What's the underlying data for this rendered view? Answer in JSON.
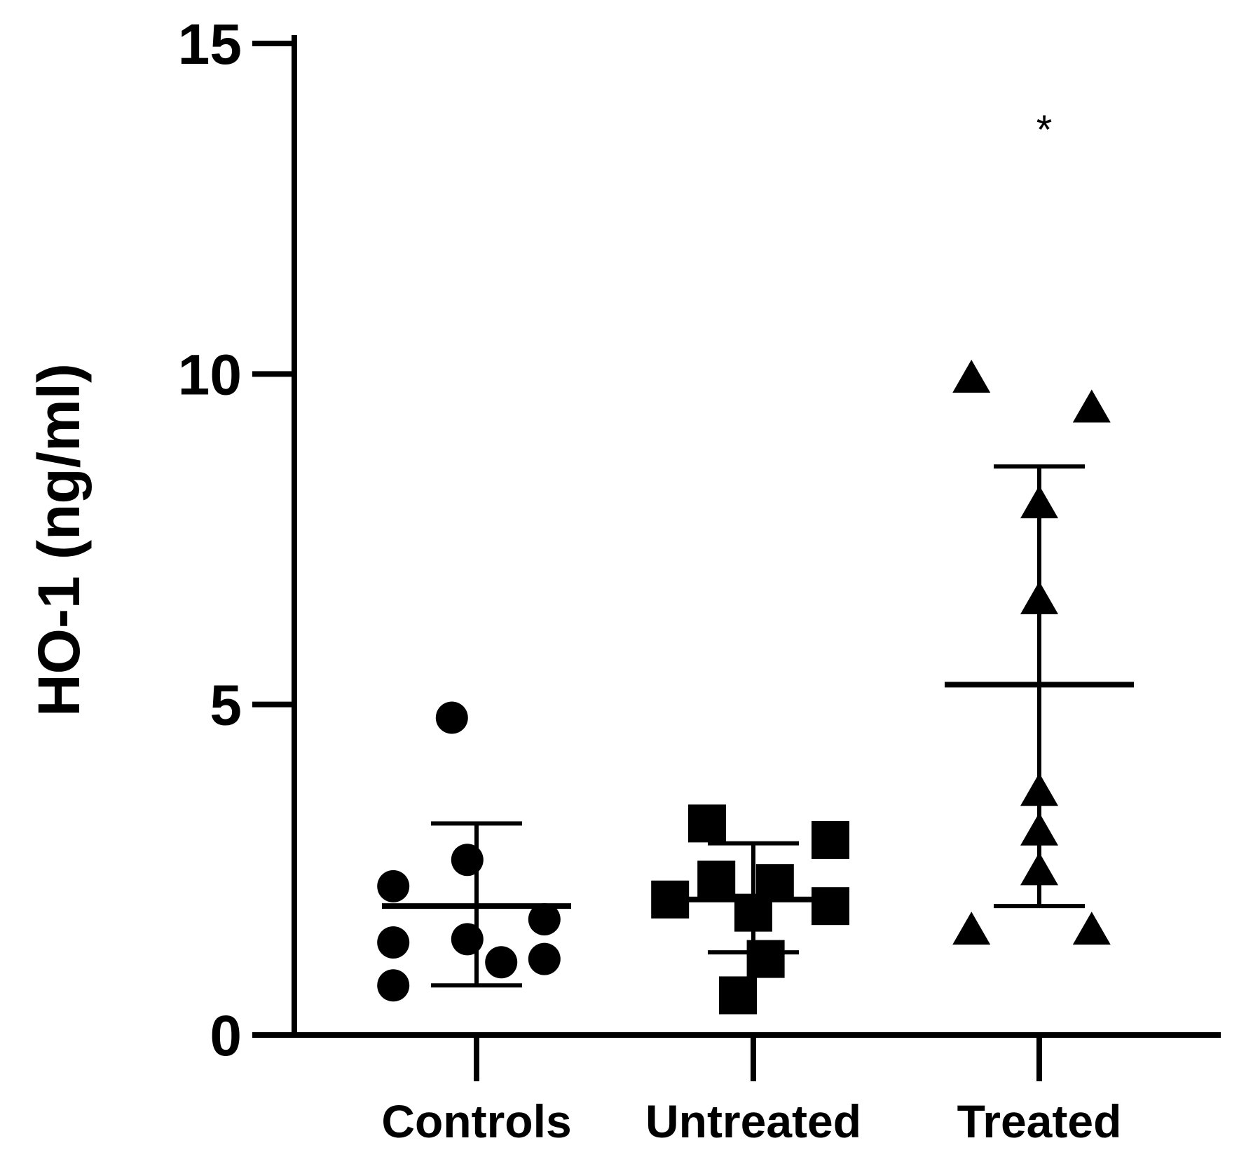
{
  "chart_data": {
    "type": "scatter",
    "title": "",
    "xlabel": "",
    "ylabel": "HO-1 (ng/ml)",
    "ylim": [
      0,
      15
    ],
    "yticks": [
      "0",
      "5",
      "10",
      "15"
    ],
    "categories": [
      "Controls",
      "Untreated",
      "Treated"
    ],
    "series": [
      {
        "name": "Controls",
        "marker": "circle",
        "points": [
          {
            "x": -0.08,
            "y": 4.8
          },
          {
            "x": -0.27,
            "y": 2.25
          },
          {
            "x": -0.03,
            "y": 2.65
          },
          {
            "x": 0.22,
            "y": 1.75
          },
          {
            "x": -0.27,
            "y": 1.4
          },
          {
            "x": -0.03,
            "y": 1.45
          },
          {
            "x": 0.08,
            "y": 1.1
          },
          {
            "x": 0.22,
            "y": 1.15
          },
          {
            "x": -0.27,
            "y": 0.75
          }
        ],
        "mean": 1.95,
        "sd_upper": 3.2,
        "sd_lower": 0.75
      },
      {
        "name": "Untreated",
        "marker": "square",
        "points": [
          {
            "x": -0.15,
            "y": 3.2
          },
          {
            "x": 0.25,
            "y": 2.95
          },
          {
            "x": -0.12,
            "y": 2.35
          },
          {
            "x": 0.07,
            "y": 2.3
          },
          {
            "x": -0.27,
            "y": 2.05
          },
          {
            "x": 0.25,
            "y": 1.95
          },
          {
            "x": 0.0,
            "y": 1.85
          },
          {
            "x": 0.04,
            "y": 1.15
          },
          {
            "x": -0.05,
            "y": 0.6
          }
        ],
        "mean": 2.05,
        "sd_upper": 2.9,
        "sd_lower": 1.25
      },
      {
        "name": "Treated",
        "marker": "triangle",
        "points": [
          {
            "x": -0.22,
            "y": 9.95
          },
          {
            "x": 0.17,
            "y": 9.5
          },
          {
            "x": 0.0,
            "y": 8.05
          },
          {
            "x": 0.0,
            "y": 6.6
          },
          {
            "x": 0.0,
            "y": 3.7
          },
          {
            "x": 0.0,
            "y": 3.1
          },
          {
            "x": 0.0,
            "y": 2.5
          },
          {
            "x": -0.22,
            "y": 1.6
          },
          {
            "x": 0.17,
            "y": 1.6
          }
        ],
        "mean": 5.3,
        "sd_upper": 8.6,
        "sd_lower": 1.95,
        "annotation": "*",
        "annotation_y": 13.8
      }
    ]
  }
}
